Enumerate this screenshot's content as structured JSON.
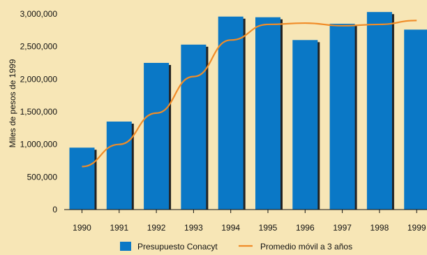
{
  "colors": {
    "background": "#f7e6b6",
    "bar": "#0a78c6",
    "bar_shadow": "#222222",
    "line": "#f08c28",
    "axis": "#111111"
  },
  "chart_data": {
    "type": "bar",
    "categories": [
      "1990",
      "1991",
      "1992",
      "1993",
      "1994",
      "1995",
      "1996",
      "1997",
      "1998",
      "1999"
    ],
    "ylabel": "Miles de pesos de 1999",
    "ylim": [
      0,
      3000000
    ],
    "yticks": [
      0,
      500000,
      1000000,
      1500000,
      2000000,
      2500000,
      3000000
    ],
    "ytick_labels": [
      "0",
      "500,000",
      "1,000,000",
      "1,500,000",
      "2,000,000",
      "2,500,000",
      "3,000,000"
    ],
    "grid": false,
    "legend_position": "bottom",
    "series": [
      {
        "name": "Presupuesto Conacyt",
        "type": "bar",
        "values": [
          950000,
          1350000,
          2250000,
          2530000,
          2960000,
          2950000,
          2600000,
          2850000,
          3030000,
          2760000
        ]
      },
      {
        "name": "Promedio móvil a 3 años",
        "type": "line",
        "values": [
          660000,
          1000000,
          1480000,
          2040000,
          2600000,
          2840000,
          2860000,
          2820000,
          2840000,
          2900000
        ]
      }
    ]
  }
}
